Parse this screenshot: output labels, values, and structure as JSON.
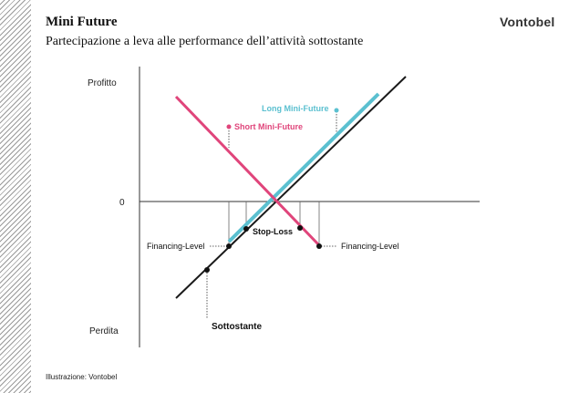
{
  "header": {
    "title": "Mini Future",
    "subtitle": "Partecipazione a leva alle performance dell’attività sottostante",
    "brand": "Vontobel"
  },
  "footer": {
    "credit": "Illustrazione: Vontobel"
  },
  "diagram": {
    "axis": {
      "top_label": "Profitto",
      "zero_label": "0",
      "bottom_label": "Perdita"
    },
    "lines": {
      "long": {
        "label": "Long Mini-Future",
        "color": "#5bc0d0"
      },
      "short": {
        "label": "Short Mini-Future",
        "color": "#e0457b"
      },
      "underlying": {
        "label": "Sottostante",
        "color": "#1a1a1a"
      }
    },
    "markers": {
      "stop_loss": "Stop-Loss",
      "financing_left": "Financing-Level",
      "financing_right": "Financing-Level"
    }
  }
}
